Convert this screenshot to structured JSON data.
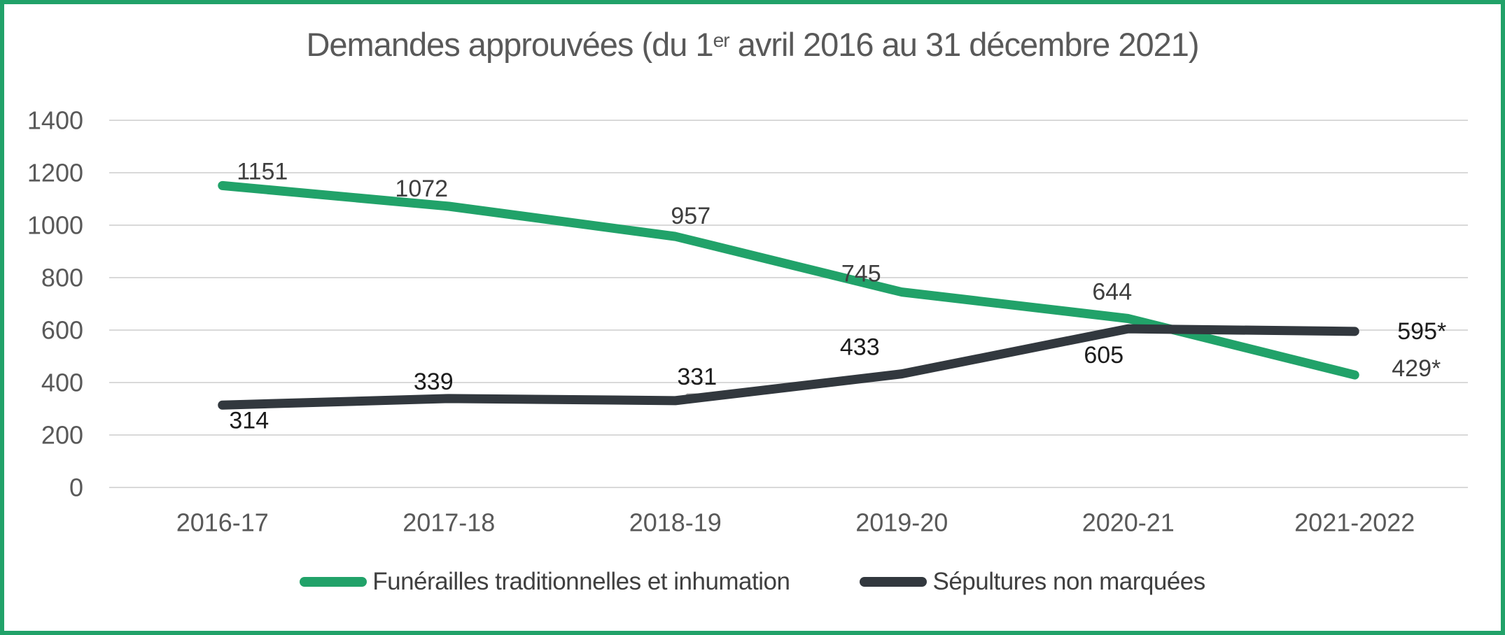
{
  "frame": {
    "border_color": "#21A269",
    "background": "#FFFFFF"
  },
  "title": {
    "part1": "Demandes approuvées (du 1",
    "superscript": "er",
    "part2": " avril 2016 au 31 décembre 2021)",
    "color": "#595959"
  },
  "legend": {
    "position": "bottom",
    "entries": [
      {
        "label": "Funérailles traditionnelles et inhumation",
        "color": "#21A269"
      },
      {
        "label": "Sépultures non marquées",
        "color": "#32383E"
      }
    ]
  },
  "chart_data": {
    "type": "line",
    "title": "Demandes approuvées (du 1er avril 2016 au 31 décembre 2021)",
    "categories": [
      "2016-17",
      "2017-18",
      "2018-19",
      "2019-20",
      "2020-21",
      "2021-2022"
    ],
    "series": [
      {
        "name": "Funérailles traditionnelles et inhumation",
        "color": "#21A269",
        "values": [
          1151,
          1072,
          957,
          745,
          644,
          429
        ],
        "point_labels": [
          "1151",
          "1072",
          "957",
          "745",
          "644",
          "429*"
        ],
        "label_color": "#3F3F3F",
        "label_offsets": [
          [
            57,
            -20
          ],
          [
            -39,
            -25
          ],
          [
            22,
            -29
          ],
          [
            -58,
            -26
          ],
          [
            -23,
            -38
          ],
          [
            88,
            -9
          ]
        ]
      },
      {
        "name": "Sépultures non marquées",
        "color": "#32383E",
        "values": [
          314,
          339,
          331,
          433,
          605,
          595
        ],
        "point_labels": [
          "314",
          "339",
          "331",
          "433",
          "605",
          "595*"
        ],
        "label_color": "#1C1C1C",
        "label_offsets": [
          [
            38,
            22
          ],
          [
            -22,
            -24
          ],
          [
            31,
            -34
          ],
          [
            -60,
            -38
          ],
          [
            -35,
            38
          ],
          [
            96,
            0
          ]
        ]
      }
    ],
    "xlabel": "",
    "ylabel": "",
    "ylim": [
      0,
      1400
    ],
    "yticks": [
      0,
      200,
      400,
      600,
      800,
      1000,
      1200,
      1400
    ],
    "grid": "horizontal",
    "gridline_color": "#D9D9D9",
    "axis_text_color": "#595959",
    "legend_position": "bottom",
    "line_width": 13,
    "annotation_leader": {
      "note": "small callout connecting label 331 to its data point",
      "path": [
        [
          963,
          572
        ],
        [
          976,
          558
        ],
        [
          999,
          558
        ]
      ],
      "color": "#A6A6A6"
    }
  }
}
